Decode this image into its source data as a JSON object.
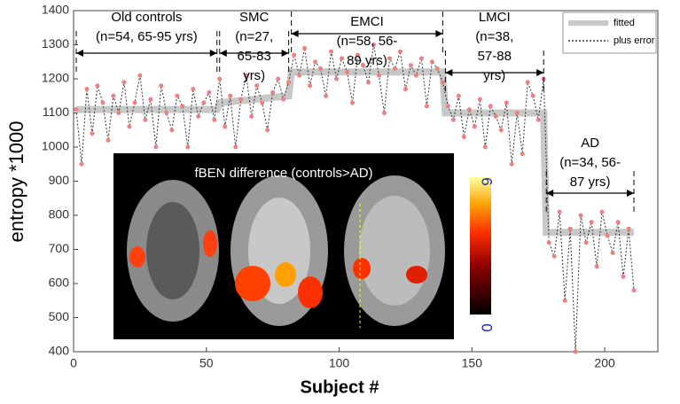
{
  "chart_data": {
    "type": "line",
    "xlabel": "Subject #",
    "ylabel": "entropy *1000",
    "xlim": [
      0,
      220
    ],
    "ylim": [
      400,
      1400
    ],
    "xticks": [
      0,
      50,
      100,
      150,
      200
    ],
    "yticks": [
      400,
      500,
      600,
      700,
      800,
      900,
      1000,
      1100,
      1200,
      1300,
      1400
    ],
    "x": [
      1,
      3,
      5,
      7,
      9,
      11,
      13,
      15,
      17,
      19,
      21,
      23,
      25,
      27,
      29,
      31,
      33,
      35,
      37,
      39,
      41,
      43,
      45,
      47,
      49,
      51,
      53,
      55,
      57,
      59,
      61,
      63,
      65,
      67,
      69,
      71,
      73,
      75,
      77,
      79,
      81,
      83,
      85,
      87,
      89,
      91,
      93,
      95,
      97,
      99,
      101,
      103,
      105,
      107,
      109,
      111,
      113,
      115,
      117,
      119,
      121,
      123,
      125,
      127,
      129,
      131,
      133,
      135,
      137,
      139,
      141,
      143,
      145,
      147,
      149,
      151,
      153,
      155,
      157,
      159,
      161,
      163,
      165,
      167,
      169,
      171,
      173,
      175,
      177,
      179,
      181,
      183,
      185,
      187,
      189,
      191,
      193,
      195,
      197,
      199,
      201,
      203,
      205,
      207,
      209,
      211
    ],
    "series": [
      {
        "name": "fitted",
        "color": "#c8c8c8",
        "x": [
          1,
          54,
          55,
          81,
          82,
          139,
          140,
          177,
          178,
          211
        ],
        "values": [
          1110,
          1110,
          1130,
          1150,
          1220,
          1220,
          1100,
          1100,
          750,
          750
        ]
      },
      {
        "name": "plus error",
        "color": "#333333",
        "marker_color": "#f08080",
        "values": [
          1110,
          950,
          1170,
          1040,
          1180,
          1130,
          1020,
          1150,
          1100,
          1190,
          1060,
          1130,
          1210,
          1080,
          1140,
          1000,
          1180,
          1100,
          1050,
          1150,
          1120,
          1000,
          1170,
          1090,
          1130,
          1160,
          1080,
          1200,
          1060,
          1150,
          1000,
          1140,
          1210,
          1090,
          1180,
          1130,
          1050,
          1160,
          1200,
          1140,
          1190,
          1270,
          1210,
          1290,
          1180,
          1250,
          1230,
          1150,
          1280,
          1200,
          1260,
          1220,
          1130,
          1270,
          1240,
          1190,
          1300,
          1210,
          1100,
          1260,
          1230,
          1280,
          1170,
          1240,
          1210,
          1260,
          1120,
          1250,
          1230,
          1190,
          1120,
          1080,
          1150,
          1030,
          1110,
          1060,
          1140,
          1000,
          1120,
          1090,
          1050,
          1130,
          950,
          1100,
          980,
          1190,
          1150,
          1080,
          1200,
          720,
          680,
          810,
          550,
          760,
          400,
          800,
          720,
          780,
          650,
          810,
          740,
          690,
          780,
          620,
          760,
          580
        ]
      }
    ],
    "annotations": [
      {
        "lines": [
          "Old controls",
          "(n=54, 65-95 yrs)"
        ]
      },
      {
        "lines": [
          "SMC",
          "(n=27,",
          "65-83",
          "yrs)"
        ]
      },
      {
        "lines": [
          "EMCI",
          "(n=58, 56-",
          "89 yrs)"
        ]
      },
      {
        "lines": [
          "LMCI",
          "(n=38,",
          "57-88",
          "yrs)"
        ]
      },
      {
        "lines": [
          "AD",
          "(n=34, 56-",
          "87 yrs)"
        ]
      }
    ],
    "inset": {
      "title": "fBEN difference (controls>AD)",
      "colorbar_ticks": [
        0,
        6
      ]
    }
  }
}
